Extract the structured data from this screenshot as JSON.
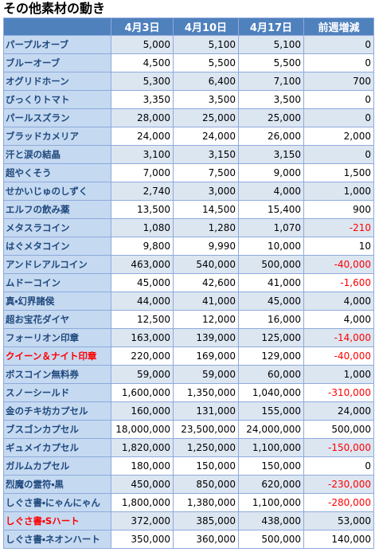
{
  "header": {
    "title": "その他素材の動き"
  },
  "table": {
    "columns": [
      "4月3日",
      "4月10日",
      "4月17日",
      "前週増減"
    ],
    "negative_color": "#ff0000",
    "rows": [
      {
        "cells": [
          "パープルオーブ",
          "5,000",
          "5,100",
          "5,100",
          "0"
        ]
      },
      {
        "cells": [
          "ブルーオーブ",
          "4,500",
          "5,500",
          "5,500",
          "0"
        ]
      },
      {
        "cells": [
          "オグリドホーン",
          "5,300",
          "6,400",
          "7,100",
          "700"
        ]
      },
      {
        "cells": [
          "びっくりトマト",
          "3,350",
          "3,500",
          "3,500",
          "0"
        ]
      },
      {
        "cells": [
          "パールスズラン",
          "28,000",
          "25,000",
          "25,000",
          "0"
        ]
      },
      {
        "cells": [
          "ブラッドカメリア",
          "24,000",
          "24,000",
          "26,000",
          "2,000"
        ]
      },
      {
        "cells": [
          "汗と涙の結晶",
          "3,100",
          "3,150",
          "3,150",
          "0"
        ]
      },
      {
        "cells": [
          "超やくそう",
          "7,000",
          "7,500",
          "9,000",
          "1,500"
        ]
      },
      {
        "cells": [
          "せかいじゅのしずく",
          "2,740",
          "3,000",
          "4,000",
          "1,000"
        ]
      },
      {
        "cells": [
          "エルフの飲み薬",
          "13,500",
          "14,500",
          "15,400",
          "900"
        ]
      },
      {
        "cells": [
          "メタスラコイン",
          "1,080",
          "1,280",
          "1,070",
          "-210"
        ]
      },
      {
        "cells": [
          "はぐメタコイン",
          "9,800",
          "9,990",
          "10,000",
          "10"
        ]
      },
      {
        "cells": [
          "アンドレアルコイン",
          "463,000",
          "540,000",
          "500,000",
          "-40,000"
        ]
      },
      {
        "cells": [
          "ムドーコイン",
          "45,000",
          "42,600",
          "41,000",
          "-1,600"
        ]
      },
      {
        "cells": [
          "真・幻界諸侯",
          "44,000",
          "41,000",
          "45,000",
          "4,000"
        ]
      },
      {
        "cells": [
          "超お宝花ダイヤ",
          "12,500",
          "12,000",
          "16,000",
          "4,000"
        ]
      },
      {
        "cells": [
          "フォーリオン印章",
          "163,000",
          "139,000",
          "125,000",
          "-14,000"
        ]
      },
      {
        "cells": [
          "クイーン＆ナイト印章",
          "220,000",
          "169,000",
          "129,000",
          "-40,000"
        ],
        "name_color": "#ff0000"
      },
      {
        "cells": [
          "ボスコイン無料券",
          "59,000",
          "59,000",
          "60,000",
          "1,000"
        ]
      },
      {
        "cells": [
          "スノーシールド",
          "1,600,000",
          "1,350,000",
          "1,040,000",
          "-310,000"
        ]
      },
      {
        "cells": [
          "金のチキ坊カプセル",
          "160,000",
          "131,000",
          "155,000",
          "24,000"
        ]
      },
      {
        "cells": [
          "ブスゴンカプセル",
          "18,000,000",
          "23,500,000",
          "24,000,000",
          "500,000"
        ]
      },
      {
        "cells": [
          "ギュメイカプセル",
          "1,820,000",
          "1,250,000",
          "1,100,000",
          "-150,000"
        ]
      },
      {
        "cells": [
          "ガルムカプセル",
          "180,000",
          "150,000",
          "150,000",
          "0"
        ]
      },
      {
        "cells": [
          "烈魔の霊符・黒",
          "450,000",
          "850,000",
          "620,000",
          "-230,000"
        ]
      },
      {
        "cells": [
          "しぐさ書・にゃんにゃん",
          "1,800,000",
          "1,380,000",
          "1,100,000",
          "-280,000"
        ]
      },
      {
        "cells": [
          "しぐさ書・Sハート",
          "372,000",
          "385,000",
          "438,000",
          "53,000"
        ],
        "name_color": "#ff0000"
      },
      {
        "cells": [
          "しぐさ書・ネオンハート",
          "350,000",
          "360,000",
          "500,000",
          "140,000"
        ]
      }
    ]
  }
}
